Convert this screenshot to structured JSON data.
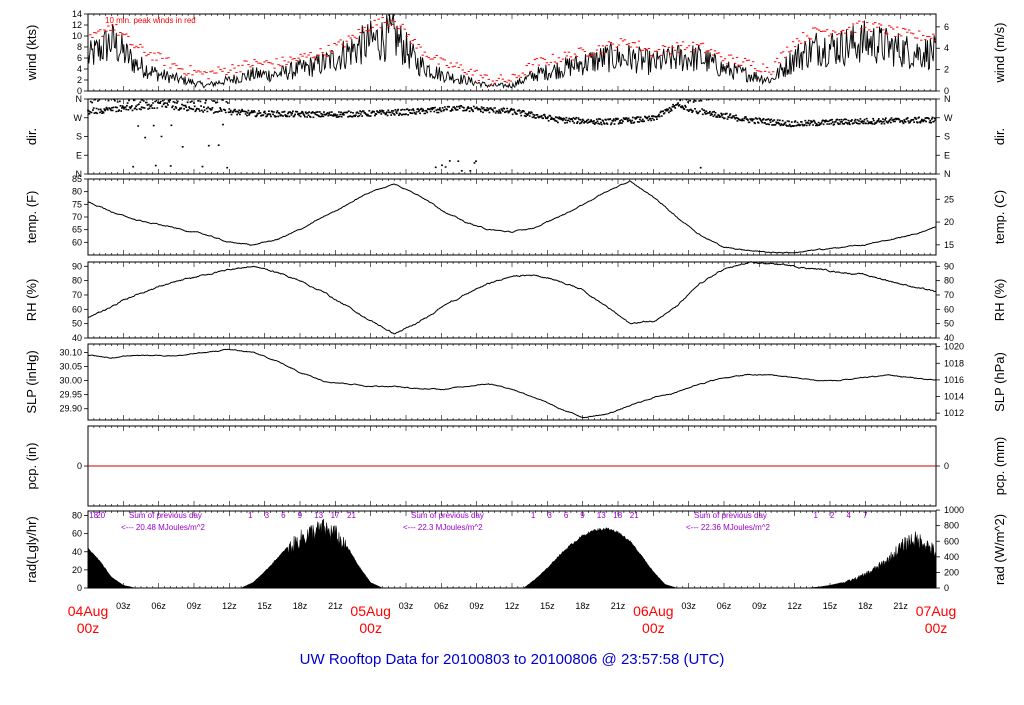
{
  "footer_title": "UW Rooftop Data for 20100803  to  20100806 @ 23:57:58  (UTC)",
  "colors": {
    "trace": "#000000",
    "peak": "#ff0000",
    "zero_line": "#cc0000",
    "annotation": "#9900cc",
    "date_label": "#ff0000",
    "title": "#0000cc"
  },
  "time_axis": {
    "hours_span": 72,
    "minor_ticks": [
      "03z",
      "06z",
      "09z",
      "12z",
      "15z",
      "18z",
      "21z",
      "03z",
      "06z",
      "09z",
      "12z",
      "15z",
      "18z",
      "21z",
      "03z",
      "06z",
      "09z",
      "12z",
      "15z",
      "18z",
      "21z"
    ],
    "minor_tick_hours": [
      3,
      6,
      9,
      12,
      15,
      18,
      21,
      27,
      30,
      33,
      36,
      39,
      42,
      45,
      51,
      54,
      57,
      60,
      63,
      66,
      69
    ],
    "date_labels": [
      {
        "hour": 0,
        "date": "04Aug",
        "time": "00z"
      },
      {
        "hour": 24,
        "date": "05Aug",
        "time": "00z"
      },
      {
        "hour": 48,
        "date": "06Aug",
        "time": "00z"
      },
      {
        "hour": 72,
        "date": "07Aug",
        "time": "00z"
      }
    ]
  },
  "chart_data": [
    {
      "type": "line",
      "id": "wind",
      "ylabel_left": "wind (kts)",
      "ylabel_right": "wind (m/s)",
      "ylim": [
        0,
        14
      ],
      "yticks_left": [
        0,
        2,
        4,
        6,
        8,
        10,
        12,
        14
      ],
      "yticks_right": [
        0,
        2,
        4,
        6
      ],
      "annotation": "10 min. peak winds in red",
      "x_hours": [
        0,
        2,
        4,
        6,
        8,
        10,
        12,
        14,
        16,
        18,
        20,
        22,
        24,
        26,
        28,
        30,
        32,
        34,
        36,
        38,
        40,
        42,
        44,
        46,
        48,
        50,
        52,
        54,
        56,
        58,
        60,
        62,
        64,
        66,
        68,
        70,
        72
      ],
      "series": [
        {
          "values": [
            6,
            9,
            5,
            3,
            2,
            1,
            2,
            3,
            3,
            4,
            5,
            7,
            9,
            10,
            5,
            3,
            2,
            1,
            1,
            3,
            4,
            5,
            6,
            6,
            5,
            6,
            6,
            4,
            3,
            2,
            6,
            8,
            8,
            9,
            8,
            7,
            7
          ]
        },
        {
          "values": [
            9,
            12,
            8,
            6,
            4,
            3,
            4,
            5,
            5,
            6,
            7,
            9,
            12,
            13,
            8,
            5,
            4,
            2,
            2,
            5,
            6,
            7,
            8,
            9,
            7,
            8,
            8,
            6,
            5,
            4,
            9,
            11,
            11,
            12,
            11,
            10,
            10
          ]
        }
      ]
    },
    {
      "type": "scatter",
      "id": "dir",
      "ylabel_left": "dir.",
      "ylabel_right": "dir.",
      "yticks_left": [
        "N",
        "E",
        "S",
        "W",
        "N"
      ],
      "yticks_right": [
        "N",
        "E",
        "S",
        "W",
        "N"
      ]
    },
    {
      "type": "line",
      "id": "temp",
      "ylabel_left": "temp. (F)",
      "ylabel_right": "temp. (C)",
      "ylim": [
        55,
        85
      ],
      "yticks_left": [
        60,
        65,
        70,
        75,
        80,
        85
      ],
      "yticks_right": [
        15,
        20,
        25
      ],
      "x_hours": [
        0,
        2,
        4,
        6,
        8,
        10,
        12,
        14,
        16,
        18,
        20,
        22,
        24,
        26,
        28,
        30,
        32,
        34,
        36,
        38,
        40,
        42,
        44,
        46,
        48,
        50,
        52,
        54,
        56,
        58,
        60,
        62,
        64,
        66,
        68,
        70,
        72
      ],
      "values": [
        76,
        72,
        69,
        67,
        65,
        63,
        60,
        59,
        61,
        65,
        70,
        75,
        80,
        83,
        79,
        73,
        68,
        65,
        64,
        66,
        70,
        75,
        80,
        84,
        78,
        70,
        63,
        58,
        57,
        56,
        56,
        57,
        58,
        59,
        61,
        63,
        66
      ]
    },
    {
      "type": "line",
      "id": "rh",
      "ylabel_left": "RH (%)",
      "ylabel_right": "RH (%)",
      "ylim": [
        40,
        93
      ],
      "yticks_left": [
        40,
        50,
        60,
        70,
        80,
        90
      ],
      "yticks_right": [
        40,
        50,
        60,
        70,
        80,
        90
      ],
      "x_hours": [
        0,
        2,
        4,
        6,
        8,
        10,
        12,
        14,
        16,
        18,
        20,
        22,
        24,
        26,
        28,
        30,
        32,
        34,
        36,
        38,
        40,
        42,
        44,
        46,
        48,
        50,
        52,
        54,
        56,
        58,
        60,
        62,
        64,
        66,
        68,
        70,
        72
      ],
      "values": [
        54,
        62,
        70,
        76,
        80,
        84,
        88,
        90,
        86,
        80,
        72,
        62,
        52,
        43,
        50,
        62,
        70,
        78,
        83,
        84,
        80,
        74,
        62,
        50,
        52,
        62,
        78,
        88,
        92,
        92,
        90,
        88,
        86,
        84,
        80,
        76,
        72
      ]
    },
    {
      "type": "line",
      "id": "slp",
      "ylabel_left": "SLP (inHg)",
      "ylabel_right": "SLP (hPa)",
      "ylim": [
        29.86,
        30.13
      ],
      "yticks_left": [
        "29.90",
        "29.95",
        "30.00",
        "30.05",
        "30.10"
      ],
      "yticks_right": [
        "1012",
        "1014",
        "1016",
        "1018",
        "1020"
      ],
      "x_hours": [
        0,
        2,
        4,
        6,
        8,
        10,
        12,
        14,
        16,
        18,
        20,
        22,
        24,
        26,
        28,
        30,
        32,
        34,
        36,
        38,
        40,
        42,
        44,
        46,
        48,
        50,
        52,
        54,
        56,
        58,
        60,
        62,
        64,
        66,
        68,
        70,
        72
      ],
      "values": [
        30.09,
        30.08,
        30.09,
        30.09,
        30.09,
        30.1,
        30.11,
        30.1,
        30.07,
        30.03,
        30.0,
        29.99,
        29.98,
        29.98,
        29.97,
        29.97,
        29.98,
        29.99,
        29.97,
        29.94,
        29.9,
        29.87,
        29.88,
        29.91,
        29.94,
        29.96,
        29.99,
        30.01,
        30.02,
        30.02,
        30.01,
        30.0,
        30.0,
        30.01,
        30.02,
        30.01,
        30.0
      ]
    },
    {
      "type": "line",
      "id": "pcp",
      "ylabel_left": "pcp. (in)",
      "ylabel_right": "pcp. (mm)",
      "ylim": [
        -1,
        1
      ],
      "yticks_left": [
        "0"
      ],
      "yticks_right": [
        "0"
      ],
      "values": [
        0
      ]
    },
    {
      "type": "area",
      "id": "rad",
      "ylabel_left": "rad(Lgly/hr)",
      "ylabel_right": "rad (W/m^2)",
      "ylim": [
        0,
        85
      ],
      "yticks_left": [
        0,
        20,
        40,
        60,
        80
      ],
      "yticks_right": [
        0,
        200,
        400,
        600,
        800,
        1000
      ],
      "x_hours": [
        0,
        1,
        2,
        3,
        4,
        5,
        6,
        7,
        8,
        9,
        10,
        11,
        12,
        13,
        14,
        15,
        16,
        17,
        18,
        19,
        20,
        21,
        22,
        23,
        24,
        25,
        26,
        27,
        28,
        29,
        30,
        31,
        32,
        33,
        34,
        35,
        36,
        37,
        38,
        39,
        40,
        41,
        42,
        43,
        44,
        45,
        46,
        47,
        48,
        49,
        50,
        51,
        52,
        53,
        54,
        55,
        56,
        57,
        58,
        59,
        60,
        61,
        62,
        63,
        64,
        65,
        66,
        67,
        68,
        69,
        70,
        71,
        72
      ],
      "values": [
        44,
        30,
        12,
        3,
        0,
        0,
        0,
        0,
        0,
        0,
        0,
        0,
        0,
        0,
        6,
        18,
        32,
        46,
        58,
        66,
        70,
        64,
        46,
        24,
        6,
        0,
        0,
        0,
        0,
        0,
        0,
        0,
        0,
        0,
        0,
        0,
        0,
        0,
        10,
        22,
        36,
        48,
        58,
        64,
        66,
        62,
        52,
        36,
        18,
        4,
        0,
        0,
        0,
        0,
        0,
        0,
        0,
        0,
        0,
        0,
        0,
        0,
        1,
        3,
        6,
        10,
        16,
        24,
        34,
        48,
        58,
        54,
        42
      ],
      "annotations": [
        {
          "label": "Sum of previous day",
          "value": "<--- 20.48 MJoules/m^2"
        },
        {
          "label": "Sum of previous day",
          "value": "<--- 22.3 MJoules/m^2"
        },
        {
          "label": "Sum of previous day",
          "value": "<--- 22.36 MJoules/m^2"
        }
      ],
      "hour_marks": [
        {
          "text": "18",
          "hour": 0.1
        },
        {
          "text": "20",
          "hour": 0.7
        },
        {
          "text": "1",
          "hour": 13.6
        },
        {
          "text": "3",
          "hour": 15.0
        },
        {
          "text": "6",
          "hour": 16.4
        },
        {
          "text": "9",
          "hour": 17.8
        },
        {
          "text": "13",
          "hour": 19.2
        },
        {
          "text": "17",
          "hour": 20.6
        },
        {
          "text": "21",
          "hour": 22.0
        },
        {
          "text": "1",
          "hour": 37.6
        },
        {
          "text": "3",
          "hour": 39.0
        },
        {
          "text": "6",
          "hour": 40.4
        },
        {
          "text": "9",
          "hour": 41.8
        },
        {
          "text": "13",
          "hour": 43.2
        },
        {
          "text": "18",
          "hour": 44.6
        },
        {
          "text": "21",
          "hour": 46.0
        },
        {
          "text": "1",
          "hour": 61.6
        },
        {
          "text": "2",
          "hour": 63.0
        },
        {
          "text": "4",
          "hour": 64.4
        },
        {
          "text": "7",
          "hour": 65.8
        }
      ]
    }
  ]
}
